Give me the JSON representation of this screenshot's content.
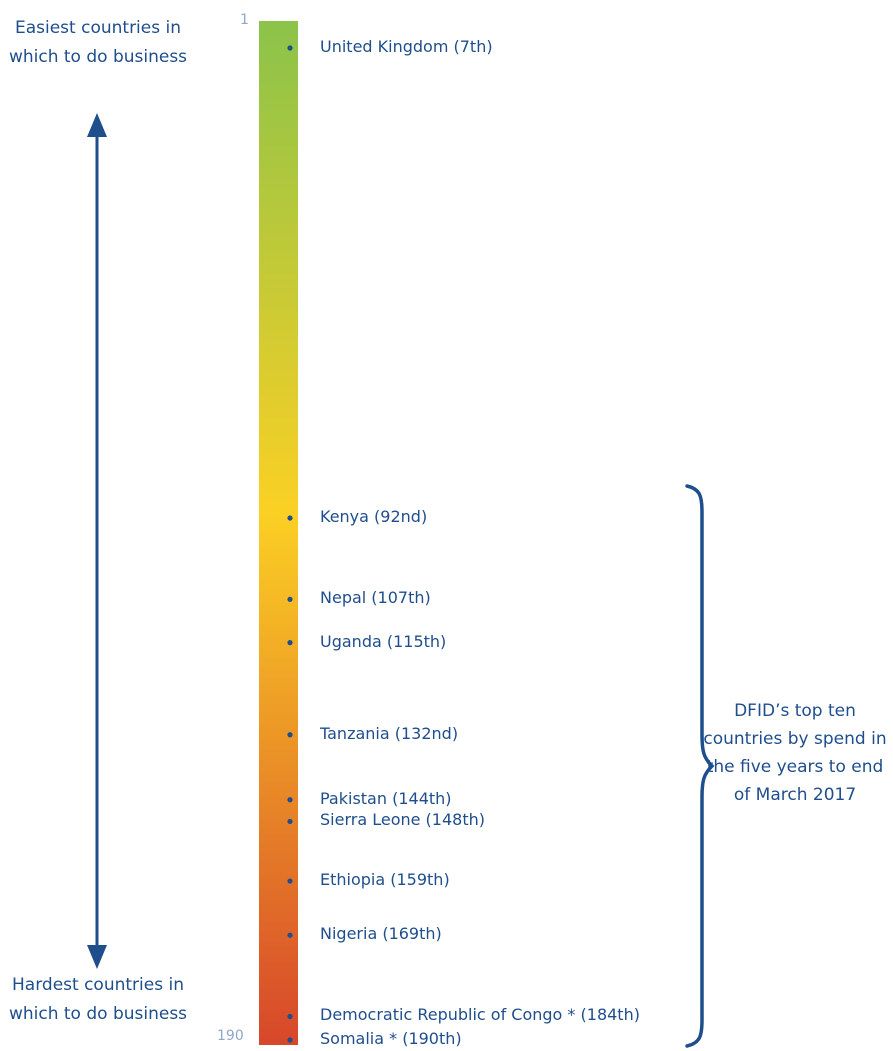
{
  "labels": {
    "easiest": "Easiest countries in which to do business",
    "hardest": "Hardest countries in which to do business",
    "brace": "DFID’s top ten countries by spend in the five years to end of March 2017"
  },
  "colors": {
    "text": "#1f4e8c",
    "tick": "#8fa8c8",
    "scale_top": "#8bc34a",
    "scale_mid": "#fbd024",
    "scale_bottom": "#d7472a"
  },
  "chart_data": {
    "type": "scatter",
    "title": "",
    "xlabel": "",
    "ylabel": "",
    "ylim": [
      1,
      190
    ],
    "y_inverted": true,
    "y_ticks": [
      "1",
      "190"
    ],
    "grid": false,
    "series": [
      {
        "points": [
          {
            "label": "United Kingdom (7th)",
            "rank": 7
          },
          {
            "label": "Kenya (92nd)",
            "rank": 92
          },
          {
            "label": "Nepal (107th)",
            "rank": 107
          },
          {
            "label": "Uganda (115th)",
            "rank": 115
          },
          {
            "label": "Tanzania (132nd)",
            "rank": 132
          },
          {
            "label": "Pakistan (144th)",
            "rank": 144
          },
          {
            "label": "Sierra Leone (148th)",
            "rank": 148
          },
          {
            "label": "Ethiopia (159th)",
            "rank": 159
          },
          {
            "label": "Nigeria (169th)",
            "rank": 169
          },
          {
            "label": "Democratic Republic of Congo * (184th)",
            "rank": 184
          },
          {
            "label": "Somalia * (190th)",
            "rank": 190
          }
        ]
      }
    ]
  }
}
